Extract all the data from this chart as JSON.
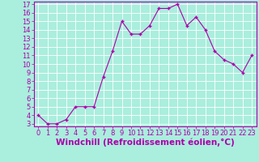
{
  "x": [
    0,
    1,
    2,
    3,
    4,
    5,
    6,
    7,
    8,
    9,
    10,
    11,
    12,
    13,
    14,
    15,
    16,
    17,
    18,
    19,
    20,
    21,
    22,
    23
  ],
  "y": [
    4,
    3,
    3,
    3.5,
    5,
    5,
    5,
    8.5,
    11.5,
    15,
    13.5,
    13.5,
    14.5,
    16.5,
    16.5,
    17,
    14.5,
    15.5,
    14,
    11.5,
    10.5,
    10,
    9,
    11
  ],
  "line_color": "#aa00aa",
  "marker_color": "#aa00aa",
  "bg_color": "#aaeedd",
  "grid_color": "#ffffff",
  "xlabel": "Windchill (Refroidissement éolien,°C)",
  "xlabel_color": "#aa00aa",
  "ylim": [
    3,
    17
  ],
  "xlim": [
    -0.5,
    23.5
  ],
  "yticks": [
    3,
    4,
    5,
    6,
    7,
    8,
    9,
    10,
    11,
    12,
    13,
    14,
    15,
    16,
    17
  ],
  "xticks": [
    0,
    1,
    2,
    3,
    4,
    5,
    6,
    7,
    8,
    9,
    10,
    11,
    12,
    13,
    14,
    15,
    16,
    17,
    18,
    19,
    20,
    21,
    22,
    23
  ],
  "tick_fontsize": 6,
  "xlabel_fontsize": 7.5
}
